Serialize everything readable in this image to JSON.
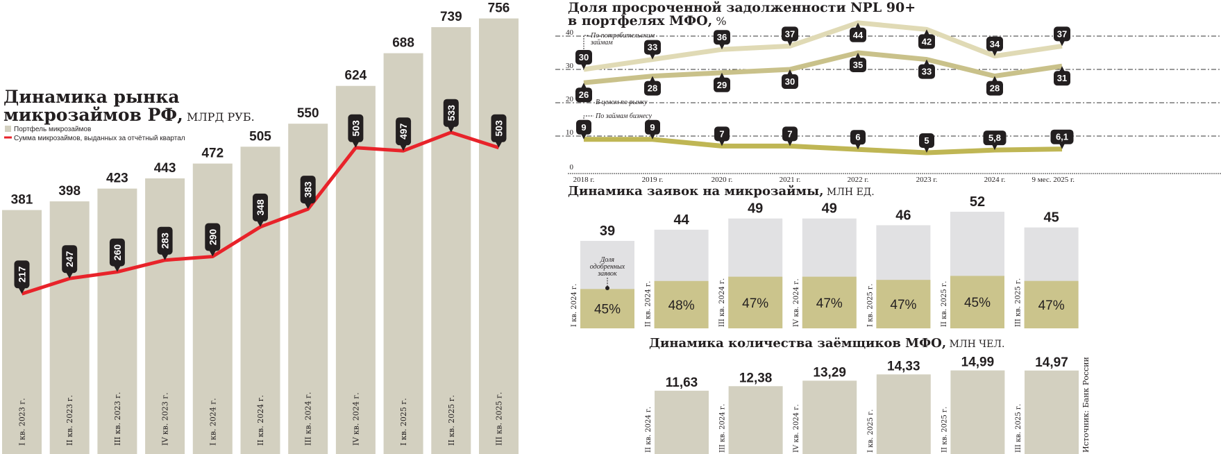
{
  "chart_data": [
    {
      "type": "bar",
      "title_line1": "Динамика рынка",
      "title_line2": "микрозаймов РФ,",
      "unit": " МЛРД РУБ.",
      "legend": [
        "Портфель микрозаймов",
        "Сумма микрозаймов, выданных за отчётный квартал"
      ],
      "categories": [
        "I кв. 2023 г.",
        "II кв. 2023 г.",
        "III кв. 2023 г.",
        "IV кв. 2023 г.",
        "I кв. 2024 г.",
        "II кв. 2024 г.",
        "III кв. 2024 г.",
        "IV кв. 2024 г.",
        "I кв. 2025 г.",
        "II кв. 2025 г.",
        "III кв. 2025 г."
      ],
      "series": [
        {
          "name": "Портфель микрозаймов",
          "type": "bar",
          "color": "#d3d0c0",
          "values": [
            381,
            398,
            423,
            443,
            472,
            505,
            550,
            624,
            688,
            739,
            756
          ]
        },
        {
          "name": "Сумма микрозаймов, выданных за отчётный квартал",
          "type": "line",
          "color": "#e8232a",
          "values": [
            217,
            247,
            260,
            283,
            290,
            348,
            383,
            503,
            497,
            533,
            503
          ]
        }
      ]
    },
    {
      "type": "line",
      "title_line1": "Доля просроченной задолженности NPL 90+",
      "title_line2": "в портфелях МФО,",
      "unit": " %",
      "yticks": [
        "0",
        "10",
        "20",
        "30",
        "40"
      ],
      "ylim": [
        0,
        40
      ],
      "x": [
        "2018 г.",
        "2019 г.",
        "2020 г.",
        "2021 г.",
        "2022 г.",
        "2023 г.",
        "2024 г.",
        "9 мес. 2025 г."
      ],
      "series": [
        {
          "name": "По потребительским займам",
          "label_lines": [
            "По потребительским",
            "займам"
          ],
          "color": "#e0dab5",
          "values": [
            30,
            33,
            36,
            37,
            44,
            42,
            34,
            37
          ],
          "labels": [
            "30",
            "33",
            "36",
            "37",
            "44",
            "42",
            "34",
            "37"
          ]
        },
        {
          "name": "В целом по рынку",
          "label_lines": [
            "В целом по рынку"
          ],
          "color": "#c9c18a",
          "values": [
            26,
            28,
            29,
            30,
            35,
            33,
            28,
            31
          ],
          "labels": [
            "26",
            "28",
            "29",
            "30",
            "35",
            "33",
            "28",
            "31"
          ]
        },
        {
          "name": "По займам бизнесу",
          "label_lines": [
            "По займам бизнесу"
          ],
          "color": "#bfb654",
          "values": [
            9,
            9,
            7,
            7,
            6,
            5,
            5.8,
            6.1
          ],
          "labels": [
            "9",
            "9",
            "7",
            "7",
            "6",
            "5",
            "5,8",
            "6,1"
          ]
        }
      ]
    },
    {
      "type": "bar",
      "title": "Динамика заявок на микрозаймы,",
      "unit": " МЛН ЕД.",
      "annotation": [
        "Доля",
        "одобренных",
        "заявок"
      ],
      "categories": [
        "I кв. 2024 г.",
        "II кв. 2024 г.",
        "III кв. 2024 г.",
        "IV кв. 2024 г.",
        "I кв. 2025 г.",
        "II кв. 2025 г.",
        "III кв. 2025 г."
      ],
      "values": [
        39,
        44,
        49,
        49,
        46,
        52,
        45
      ],
      "approved_share": [
        45,
        48,
        47,
        47,
        47,
        45,
        47
      ],
      "approved_labels": [
        "45%",
        "48%",
        "47%",
        "47%",
        "47%",
        "45%",
        "47%"
      ],
      "colors": {
        "total": "#e1e1e3",
        "approved": "#cbc48c"
      }
    },
    {
      "type": "bar",
      "title": "Динамика количества заёмщиков МФО,",
      "unit": " МЛН ЧЕЛ.",
      "categories": [
        "II кв. 2024 г.",
        "III кв. 2024 г.",
        "IV кв. 2024 г.",
        "I кв. 2025 г.",
        "II кв. 2025 г.",
        "III кв. 2025 г."
      ],
      "values": [
        11.63,
        12.38,
        13.29,
        14.33,
        14.99,
        14.97
      ],
      "value_labels": [
        "11,63",
        "12,38",
        "13,29",
        "14,33",
        "14,99",
        "14,97"
      ],
      "color": "#d3d0c0"
    }
  ],
  "source": "Источник: Банк России"
}
